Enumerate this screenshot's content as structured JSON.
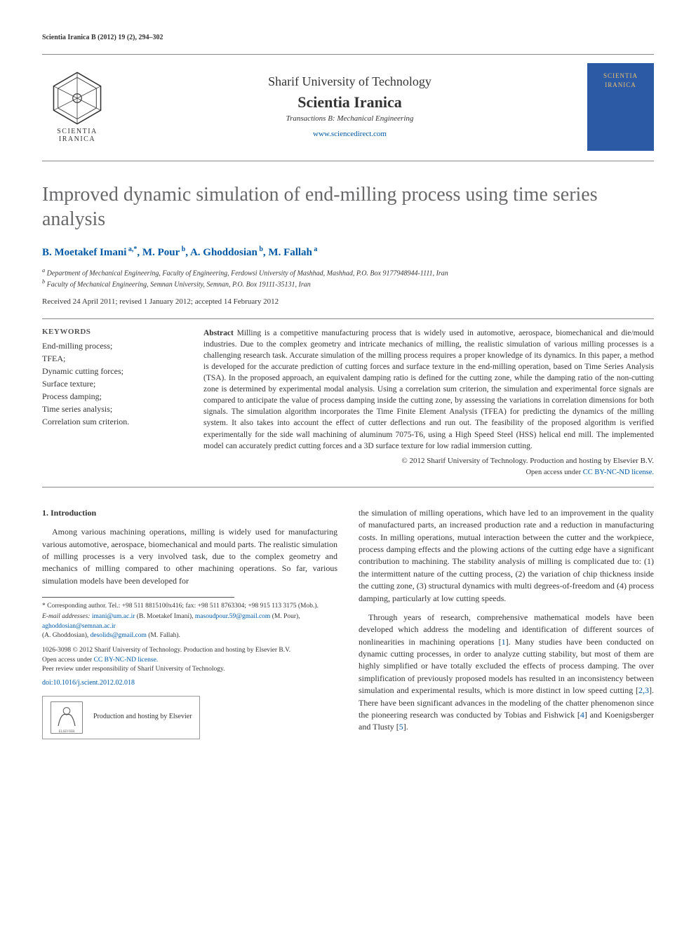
{
  "running_header": "Scientia Iranica B (2012) 19 (2), 294–302",
  "banner": {
    "logo_caption": "SCIENTIA IRANICA",
    "university": "Sharif University of Technology",
    "journal": "Scientia Iranica",
    "transactions": "Transactions B: Mechanical Engineering",
    "url": "www.sciencedirect.com",
    "cover_text": "SCIENTIA IRANICA"
  },
  "title": "Improved dynamic simulation of end-milling process using time series analysis",
  "authors_html": "B. Moetakef Imani<sup> a,*</sup>, M. Pour<sup> b</sup>, A. Ghoddosian<sup> b</sup>, M. Fallah<sup> a</sup>",
  "affiliations": {
    "a": "Department of Mechanical Engineering, Faculty of Engineering, Ferdowsi University of Mashhad, Mashhad, P.O. Box 9177948944-1111, Iran",
    "b": "Faculty of Mechanical Engineering, Semnan University, Semnan, P.O. Box 19111-35131, Iran"
  },
  "dates": "Received 24 April 2011; revised 1 January 2012; accepted 14 February 2012",
  "keywords_heading": "KEYWORDS",
  "keywords": [
    "End-milling process;",
    "TFEA;",
    "Dynamic cutting forces;",
    "Surface texture;",
    "Process damping;",
    "Time series analysis;",
    "Correlation sum criterion."
  ],
  "abstract_label": "Abstract",
  "abstract_body": "Milling is a competitive manufacturing process that is widely used in automotive, aerospace, biomechanical and die/mould industries. Due to the complex geometry and intricate mechanics of milling, the realistic simulation of various milling processes is a challenging research task. Accurate simulation of the milling process requires a proper knowledge of its dynamics. In this paper, a method is developed for the accurate prediction of cutting forces and surface texture in the end-milling operation, based on Time Series Analysis (TSA). In the proposed approach, an equivalent damping ratio is defined for the cutting zone, while the damping ratio of the non-cutting zone is determined by experimental modal analysis. Using a correlation sum criterion, the simulation and experimental force signals are compared to anticipate the value of process damping inside the cutting zone, by assessing the variations in correlation dimensions for both signals. The simulation algorithm incorporates the Time Finite Element Analysis (TFEA) for predicting the dynamics of the milling system. It also takes into account the effect of cutter deflections and run out. The feasibility of the proposed algorithm is verified experimentally for the side wall machining of aluminum 7075-T6, using a High Speed Steel (HSS) helical end mill. The implemented model can accurately predict cutting forces and a 3D surface texture for low radial immersion cutting.",
  "copyright": "© 2012 Sharif University of Technology. Production and hosting by Elsevier B.V.",
  "open_access_prefix": "Open access under ",
  "cc_license": "CC BY-NC-ND license.",
  "section1_heading": "1.  Introduction",
  "intro_p1": "Among various machining operations, milling is widely used for manufacturing various automotive, aerospace, biomechanical and mould parts. The realistic simulation of milling processes is a very involved task, due to the complex geometry and mechanics of milling compared to other machining operations. So far, various simulation models have been developed for",
  "right_p1": "the simulation of milling operations, which have led to an improvement in the quality of manufactured parts, an increased production rate and a reduction in manufacturing costs. In milling operations, mutual interaction between the cutter and the workpiece, process damping effects and the plowing actions of the cutting edge have a significant contribution to machining. The stability analysis of milling is complicated due to: (1) the intermittent nature of the cutting process, (2) the variation of chip thickness inside the cutting zone, (3) structural dynamics with multi degrees-of-freedom and (4) process damping, particularly at low cutting speeds.",
  "right_p2_pre": "Through years of research, comprehensive mathematical models have been developed which address the modeling and identification of different sources of nonlinearities in machining operations [",
  "right_p2_mid": "]. Many studies have been conducted on dynamic cutting processes, in order to analyze cutting stability, but most of them are highly simplified or have totally excluded the effects of process damping. The over simplification of previously proposed models has resulted in an inconsistency between simulation and experimental results, which is more distinct in low speed cutting [",
  "right_p2_post": "]. There have been significant advances in the modeling of the chatter phenomenon since the pioneering research was conducted by Tobias and Fishwick [",
  "right_p2_tail": "] and Koenigsberger and Tlusty [",
  "right_p2_end": "].",
  "refs": {
    "r1": "1",
    "r23": "2,3",
    "r4": "4",
    "r5": "5"
  },
  "footnotes": {
    "corr": "Corresponding author. Tel.: +98 511 8815100x416; fax: +98 511 8763304; +98 915 113 3175 (Mob.).",
    "email_label": "E-mail addresses:",
    "e1": "imani@um.ac.ir",
    "e1_who": " (B. Moetakef Imani),",
    "e2": "masoudpour.59@gmail.com",
    "e2_who": " (M. Pour), ",
    "e3": "aghoddosian@semnan.ac.ir",
    "e3_who": "(A. Ghoddosian), ",
    "e4": "desolids@gmail.com",
    "e4_who": " (M. Fallah)."
  },
  "issn_block": {
    "line1": "1026-3098 © 2012 Sharif University of Technology. Production and hosting by Elsevier B.V.",
    "line2_pre": "Open access under ",
    "line2_link": "CC BY-NC-ND license.",
    "line3": "Peer review under responsibility of Sharif University of Technology."
  },
  "doi": "doi:10.1016/j.scient.2012.02.018",
  "elsevier": {
    "caption": "ELSEVIER",
    "text": "Production and hosting by Elsevier"
  },
  "colors": {
    "link": "#0058a5",
    "title_gray": "#68686a",
    "cover_bg": "#2c5aa5",
    "cover_text": "#e8c070",
    "rule": "#888888"
  }
}
